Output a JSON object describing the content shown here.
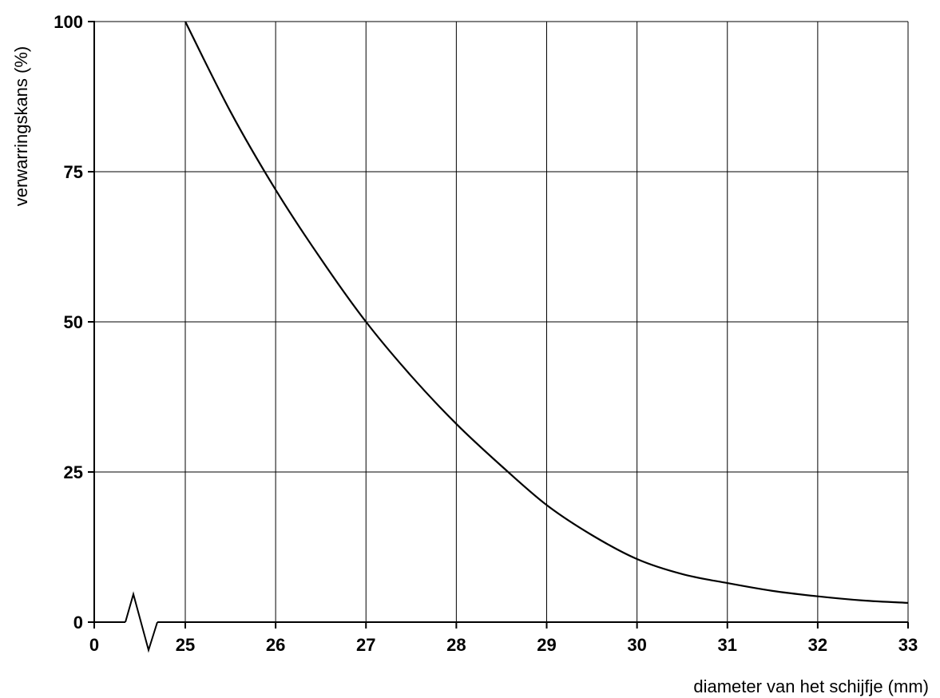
{
  "chart_data": {
    "type": "line",
    "title": "",
    "xlabel": "diameter van het schijfje (mm)",
    "ylabel": "verwarringskans (%)",
    "x_axis_break": true,
    "x_ticks": [
      0,
      25,
      26,
      27,
      28,
      29,
      30,
      31,
      32,
      33
    ],
    "y_ticks": [
      0,
      25,
      50,
      75,
      100
    ],
    "xlim": [
      25,
      33
    ],
    "ylim": [
      0,
      100
    ],
    "grid": true,
    "series": [
      {
        "x": [
          25,
          25.5,
          26,
          26.5,
          27,
          27.5,
          28,
          28.5,
          29,
          29.5,
          30,
          30.5,
          31,
          31.5,
          32,
          32.5,
          33
        ],
        "values": [
          100,
          85,
          72,
          60.5,
          50,
          41,
          33,
          26,
          19.5,
          14.5,
          10.5,
          8,
          6.5,
          5.2,
          4.3,
          3.6,
          3.2
        ]
      }
    ]
  }
}
